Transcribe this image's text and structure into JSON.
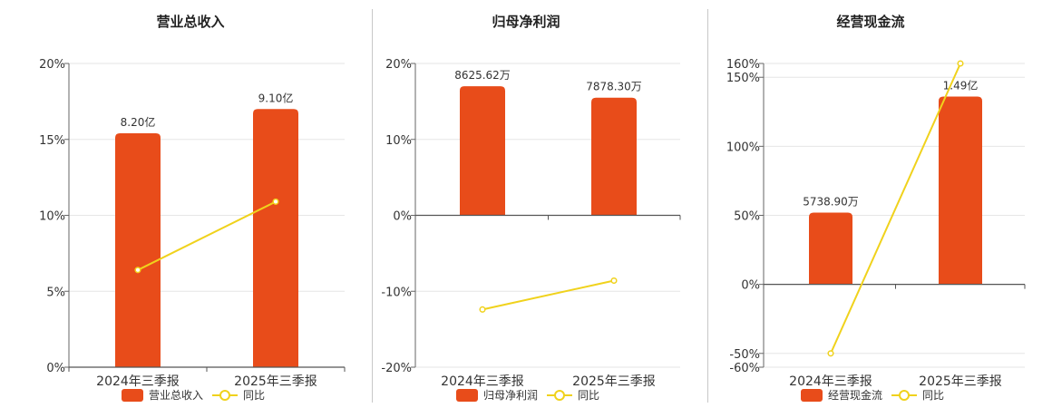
{
  "chart_data": [
    {
      "type": "bar",
      "title": "营业总收入",
      "categories": [
        "2024年三季报",
        "2025年三季报"
      ],
      "bar_series": {
        "name": "营业总收入",
        "value_labels": [
          "8.20亿",
          "9.10亿"
        ],
        "axis_values": [
          15.4,
          17.0
        ]
      },
      "line_series": {
        "name": "同比",
        "values": [
          6.4,
          10.9
        ]
      },
      "y_ticks": [
        0,
        5,
        10,
        15,
        20
      ],
      "y_tick_labels": [
        "0%",
        "5%",
        "10%",
        "15%",
        "20%"
      ],
      "ylim": [
        0,
        20
      ],
      "grid": true,
      "legend": "bottom",
      "colors": {
        "bar": "#e84c1a",
        "line": "#f0d21c"
      }
    },
    {
      "type": "bar",
      "title": "归母净利润",
      "categories": [
        "2024年三季报",
        "2025年三季报"
      ],
      "bar_series": {
        "name": "归母净利润",
        "value_labels": [
          "8625.62万",
          "7878.30万"
        ],
        "axis_values": [
          17.0,
          15.5
        ]
      },
      "line_series": {
        "name": "同比",
        "values": [
          -12.4,
          -8.6
        ]
      },
      "y_ticks": [
        -20,
        -10,
        0,
        10,
        20
      ],
      "y_tick_labels": [
        "-20%",
        "-10%",
        "0%",
        "10%",
        "20%"
      ],
      "ylim": [
        -20,
        20
      ],
      "grid": true,
      "legend": "bottom",
      "colors": {
        "bar": "#e84c1a",
        "line": "#f0d21c"
      }
    },
    {
      "type": "bar",
      "title": "经营现金流",
      "categories": [
        "2024年三季报",
        "2025年三季报"
      ],
      "bar_series": {
        "name": "经营现金流",
        "value_labels": [
          "5738.90万",
          "1.49亿"
        ],
        "axis_values": [
          52,
          136
        ]
      },
      "line_series": {
        "name": "同比",
        "values": [
          -50,
          160
        ]
      },
      "y_ticks": [
        -60,
        -50,
        0,
        50,
        100,
        150,
        160
      ],
      "y_tick_labels": [
        "-60%",
        "-50%",
        "0%",
        "50%",
        "100%",
        "150%",
        "160%"
      ],
      "ylim": [
        -60,
        160
      ],
      "grid": true,
      "legend": "bottom",
      "colors": {
        "bar": "#e84c1a",
        "line": "#f0d21c"
      }
    }
  ]
}
